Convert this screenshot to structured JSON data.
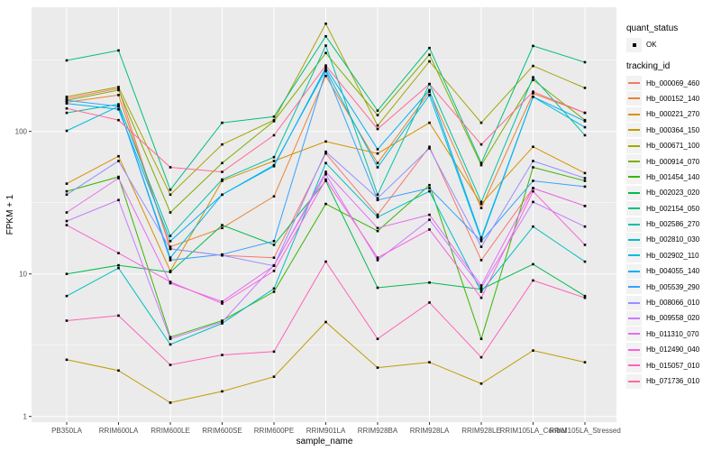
{
  "figure": {
    "background": "#FFFFFF"
  },
  "panel": {
    "background": "#EBEBEB",
    "grid_color": "#FFFFFF",
    "tick_color": "#333333",
    "axis_text_color": "#4D4D4D",
    "axis_title_color": "#000000",
    "point_color": "#000000"
  },
  "chart_data": {
    "type": "line",
    "title": "",
    "xlabel": "sample_name",
    "ylabel": "FPKM + 1",
    "y_scale": "log10",
    "y_ticks": [
      1,
      10,
      100
    ],
    "y_tick_labels": [
      "1",
      "10",
      "100"
    ],
    "y_minor_ticks": [
      3.162,
      31.62,
      316.2
    ],
    "ylim": [
      1,
      750
    ],
    "grid": true,
    "legend_position": "right",
    "categories": [
      "PB350LA",
      "RRIM600LA",
      "RRIM600LE",
      "RRIM600SE",
      "RRIM600PE",
      "RRIM901LA",
      "RRIM928BA",
      "RRIM928LA",
      "RRIM928LE",
      "RRIM105LA_Control",
      "RRIM105LA_Stressed"
    ],
    "legend": {
      "quant_status_title": "quant_status",
      "quant_status_items": [
        {
          "label": "OK",
          "shape": "point"
        }
      ],
      "tracking_title": "tracking_id"
    },
    "series": [
      {
        "name": "Hb_000069_460",
        "color": "#F8766D",
        "values": [
          170,
          200,
          15,
          13.5,
          13,
          70,
          26,
          78,
          12.5,
          40,
          30
        ]
      },
      {
        "name": "Hb_000152_140",
        "color": "#EA8331",
        "values": [
          160,
          180,
          15.5,
          21,
          35,
          245,
          60,
          190,
          29,
          185,
          135
        ]
      },
      {
        "name": "Hb_000221_270",
        "color": "#D89000",
        "values": [
          43,
          67,
          10.5,
          45,
          62,
          85,
          70,
          115,
          31,
          78,
          51
        ]
      },
      {
        "name": "Hb_000364_150",
        "color": "#C09B00",
        "values": [
          2.5,
          2.1,
          1.25,
          1.5,
          1.9,
          4.6,
          2.2,
          2.4,
          1.7,
          2.9,
          2.4
        ]
      },
      {
        "name": "Hb_000671_100",
        "color": "#A3A500",
        "values": [
          175,
          205,
          36,
          81,
          120,
          570,
          110,
          310,
          115,
          288,
          202
        ]
      },
      {
        "name": "Hb_000914_070",
        "color": "#7CAE00",
        "values": [
          165,
          195,
          27,
          60,
          118,
          355,
          130,
          345,
          58,
          230,
          120
        ]
      },
      {
        "name": "Hb_001454_140",
        "color": "#39B600",
        "values": [
          38,
          48,
          3.6,
          4.7,
          7.5,
          31,
          20,
          42,
          3.5,
          56,
          45
        ]
      },
      {
        "name": "Hb_002023_020",
        "color": "#00BB4E",
        "values": [
          10,
          11.5,
          10.3,
          22,
          16,
          45,
          8,
          8.7,
          7.8,
          11.7,
          7
        ]
      },
      {
        "name": "Hb_002154_050",
        "color": "#00BF7D",
        "values": [
          315,
          370,
          39,
          115,
          127,
          465,
          140,
          385,
          60,
          398,
          306
        ]
      },
      {
        "name": "Hb_002586_270",
        "color": "#00C1A3",
        "values": [
          135,
          155,
          18.5,
          46,
          66,
          400,
          36,
          215,
          32,
          240,
          94
        ]
      },
      {
        "name": "Hb_002810_030",
        "color": "#00BFC4",
        "values": [
          7,
          11,
          3.2,
          4.5,
          7.9,
          60,
          25,
          38,
          7.5,
          21.5,
          12.2
        ]
      },
      {
        "name": "Hb_002902_110",
        "color": "#00BAE0",
        "values": [
          101,
          150,
          13,
          36,
          58,
          270,
          56,
          180,
          17.5,
          175,
          107
        ]
      },
      {
        "name": "Hb_004055_140",
        "color": "#00B0F6",
        "values": [
          157,
          143,
          17,
          36,
          57,
          280,
          75,
          195,
          18,
          175,
          118
        ]
      },
      {
        "name": "Hb_005539_290",
        "color": "#35A2FF",
        "values": [
          165,
          150,
          12.5,
          13.7,
          17,
          265,
          33,
          40,
          17,
          45,
          41
        ]
      },
      {
        "name": "Hb_008066_010",
        "color": "#9590FF",
        "values": [
          36,
          62,
          15,
          13.5,
          11.4,
          72,
          34,
          76,
          15.5,
          62,
          47
        ]
      },
      {
        "name": "Hb_009558_020",
        "color": "#C77CFF",
        "values": [
          23.5,
          33,
          3.5,
          4.6,
          11.5,
          50,
          12.5,
          24,
          8,
          32,
          21.5
        ]
      },
      {
        "name": "Hb_011310_070",
        "color": "#E76BF3",
        "values": [
          27,
          47,
          8.6,
          6.4,
          11.4,
          52,
          21,
          26,
          8.3,
          40,
          30
        ]
      },
      {
        "name": "Hb_012490_040",
        "color": "#FA62DB",
        "values": [
          22,
          14,
          8.8,
          6.2,
          10.5,
          46,
          13,
          20.5,
          6.8,
          38,
          16
        ]
      },
      {
        "name": "Hb_015057_010",
        "color": "#FF62BC",
        "values": [
          4.7,
          5.1,
          2.3,
          2.7,
          2.85,
          12.2,
          3.5,
          6.3,
          2.6,
          9,
          6.8
        ]
      },
      {
        "name": "Hb_071736_010",
        "color": "#FF6A98",
        "values": [
          145,
          120,
          56,
          52,
          94,
          290,
          104,
          215,
          81,
          190,
          135
        ]
      }
    ]
  }
}
